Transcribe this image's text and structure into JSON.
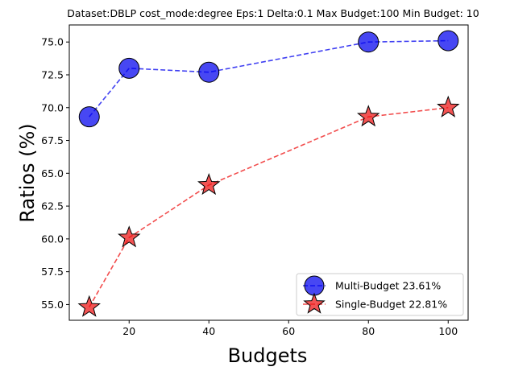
{
  "chart_data": {
    "type": "line",
    "title": "Dataset:DBLP cost_mode:degree Eps:1 Delta:0.1 Max Budget:100 Min Budget: 10",
    "xlabel": "Budgets",
    "ylabel": "Ratios (%)",
    "xlim": [
      5,
      105
    ],
    "ylim": [
      53.8,
      76.3
    ],
    "x_ticks": [
      20,
      40,
      60,
      80,
      100
    ],
    "x_tick_labels": [
      "20",
      "40",
      "60",
      "80",
      "100"
    ],
    "y_ticks": [
      55.0,
      57.5,
      60.0,
      62.5,
      65.0,
      67.5,
      70.0,
      72.5,
      75.0
    ],
    "y_tick_labels": [
      "55.0",
      "57.5",
      "60.0",
      "62.5",
      "65.0",
      "67.5",
      "70.0",
      "72.5",
      "75.0"
    ],
    "grid": false,
    "legend_position": "lower-right",
    "series": [
      {
        "name": "Multi-Budget 23.61%",
        "marker": "circle",
        "color": "#0000ee",
        "x": [
          10,
          20,
          40,
          80,
          100
        ],
        "y": [
          69.3,
          73.0,
          72.7,
          75.0,
          75.1
        ]
      },
      {
        "name": "Single-Budget 22.81%",
        "marker": "star",
        "color": "#ee1111",
        "x": [
          10,
          20,
          40,
          80,
          100
        ],
        "y": [
          54.8,
          60.1,
          64.1,
          69.3,
          70.0
        ]
      }
    ]
  }
}
